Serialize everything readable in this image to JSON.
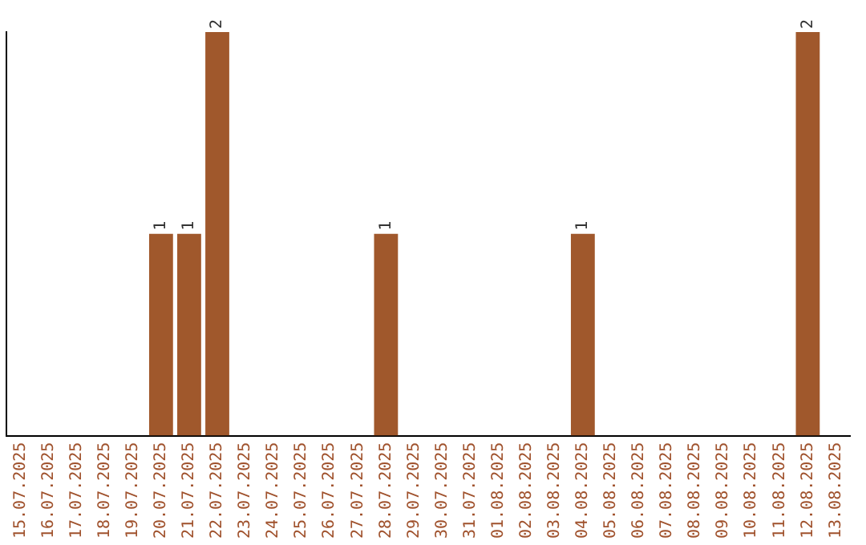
{
  "chart_data": {
    "type": "bar",
    "categories": [
      "15.07.2025",
      "16.07.2025",
      "17.07.2025",
      "18.07.2025",
      "19.07.2025",
      "20.07.2025",
      "21.07.2025",
      "22.07.2025",
      "23.07.2025",
      "24.07.2025",
      "25.07.2025",
      "26.07.2025",
      "27.07.2025",
      "28.07.2025",
      "29.07.2025",
      "30.07.2025",
      "31.07.2025",
      "01.08.2025",
      "02.08.2025",
      "03.08.2025",
      "04.08.2025",
      "05.08.2025",
      "06.08.2025",
      "07.08.2025",
      "08.08.2025",
      "09.08.2025",
      "10.08.2025",
      "11.08.2025",
      "12.08.2025",
      "13.08.2025"
    ],
    "values": [
      0,
      0,
      0,
      0,
      0,
      1,
      1,
      2,
      0,
      0,
      0,
      0,
      0,
      1,
      0,
      0,
      0,
      0,
      0,
      0,
      1,
      0,
      0,
      0,
      0,
      0,
      0,
      0,
      2,
      0
    ],
    "value_labels": [
      null,
      null,
      null,
      null,
      null,
      "1",
      "1",
      "2",
      null,
      null,
      null,
      null,
      null,
      "1",
      null,
      null,
      null,
      null,
      null,
      null,
      "1",
      null,
      null,
      null,
      null,
      null,
      null,
      null,
      "2",
      null
    ],
    "color": "#a0582c",
    "tick_labels": "x",
    "grid": false,
    "legend": false
  }
}
